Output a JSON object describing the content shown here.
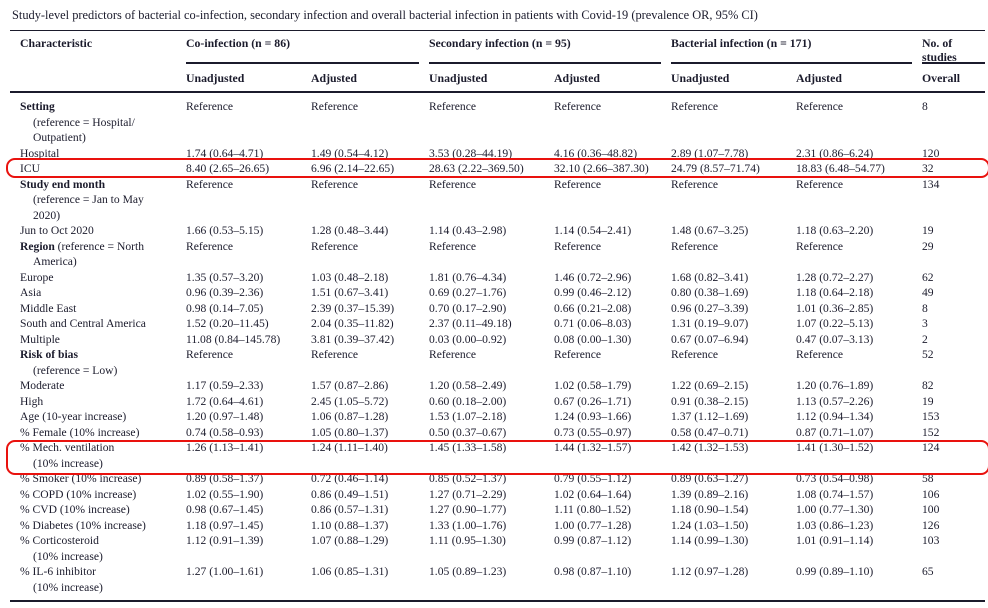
{
  "title": "Study-level predictors of bacterial co-infection, secondary infection and overall bacterial infection in patients with Covid-19 (prevalence OR, 95% CI)",
  "text_color": "#1b1b2c",
  "annotation": {
    "highlight_color": "#e9120e",
    "highlighted_rows": [
      "ICU",
      "% Mech. ventilation (10% increase)"
    ]
  },
  "header": {
    "characteristic": "Characteristic",
    "groups": [
      {
        "label": "Co-infection (n = 86)"
      },
      {
        "label": "Secondary infection (n = 95)"
      },
      {
        "label": "Bacterial infection (n = 171)"
      }
    ],
    "studies_line1": "No. of",
    "studies_line2": "studies",
    "sub": [
      "Unadjusted",
      "Adjusted",
      "Unadjusted",
      "Adjusted",
      "Unadjusted",
      "Adjusted"
    ],
    "overall": "Overall"
  },
  "table": {
    "rows": [
      {
        "label": "Setting",
        "bold": true,
        "rest": "",
        "sublines": [
          "(reference = Hospital/",
          "Outpatient)"
        ],
        "highlight": false,
        "values": [
          "Reference",
          "Reference",
          "Reference",
          "Reference",
          "Reference",
          "Reference"
        ],
        "studies": "8"
      },
      {
        "label": "Hospital",
        "bold": false,
        "rest": "",
        "sublines": [],
        "highlight": false,
        "values": [
          "1.74 (0.64–4.71)",
          "1.49 (0.54–4.12)",
          "3.53 (0.28–44.19)",
          "4.16 (0.36–48.82)",
          "2.89 (1.07–7.78)",
          "2.31 (0.86–6.24)"
        ],
        "studies": "120"
      },
      {
        "label": "ICU",
        "bold": false,
        "rest": "",
        "sublines": [],
        "highlight": true,
        "values": [
          "8.40 (2.65–26.65)",
          "6.96 (2.14–22.65)",
          "28.63 (2.22–369.50)",
          "32.10 (2.66–387.30)",
          "24.79 (8.57–71.74)",
          "18.83 (6.48–54.77)"
        ],
        "studies": "32"
      },
      {
        "label": "Study end month",
        "bold": true,
        "rest": "",
        "sublines": [
          "(reference = Jan to May",
          "2020)"
        ],
        "highlight": false,
        "values": [
          "Reference",
          "Reference",
          "Reference",
          "Reference",
          "Reference",
          "Reference"
        ],
        "studies": "134"
      },
      {
        "label": "Jun to Oct 2020",
        "bold": false,
        "rest": "",
        "sublines": [],
        "highlight": false,
        "values": [
          "1.66 (0.53–5.15)",
          "1.28 (0.48–3.44)",
          "1.14 (0.43–2.98)",
          "1.14 (0.54–2.41)",
          "1.48 (0.67–3.25)",
          "1.18 (0.63–2.20)"
        ],
        "studies": "19"
      },
      {
        "label": "Region",
        "bold": true,
        "rest": " (reference = North",
        "sublines": [
          "America)"
        ],
        "highlight": false,
        "values": [
          "Reference",
          "Reference",
          "Reference",
          "Reference",
          "Reference",
          "Reference"
        ],
        "studies": "29"
      },
      {
        "label": "Europe",
        "bold": false,
        "rest": "",
        "sublines": [],
        "highlight": false,
        "values": [
          "1.35 (0.57–3.20)",
          "1.03 (0.48–2.18)",
          "1.81 (0.76–4.34)",
          "1.46 (0.72–2.96)",
          "1.68 (0.82–3.41)",
          "1.28 (0.72–2.27)"
        ],
        "studies": "62"
      },
      {
        "label": "Asia",
        "bold": false,
        "rest": "",
        "sublines": [],
        "highlight": false,
        "values": [
          "0.96 (0.39–2.36)",
          "1.51 (0.67–3.41)",
          "0.69 (0.27–1.76)",
          "0.99 (0.46–2.12)",
          "0.80 (0.38–1.69)",
          "1.18 (0.64–2.18)"
        ],
        "studies": "49"
      },
      {
        "label": "Middle East",
        "bold": false,
        "rest": "",
        "sublines": [],
        "highlight": false,
        "values": [
          "0.98 (0.14–7.05)",
          "2.39 (0.37–15.39)",
          "0.70 (0.17–2.90)",
          "0.66 (0.21–2.08)",
          "0.96 (0.27–3.39)",
          "1.01 (0.36–2.85)"
        ],
        "studies": "8"
      },
      {
        "label": "South and Central America",
        "bold": false,
        "rest": "",
        "sublines": [],
        "highlight": false,
        "values": [
          "1.52 (0.20–11.45)",
          "2.04 (0.35–11.82)",
          "2.37 (0.11–49.18)",
          "0.71 (0.06–8.03)",
          "1.31 (0.19–9.07)",
          "1.07 (0.22–5.13)"
        ],
        "studies": "3"
      },
      {
        "label": "Multiple",
        "bold": false,
        "rest": "",
        "sublines": [],
        "highlight": false,
        "values": [
          "11.08 (0.84–145.78)",
          "3.81 (0.39–37.42)",
          "0.03 (0.00–0.92)",
          "0.08 (0.00–1.30)",
          "0.67 (0.07–6.94)",
          "0.47 (0.07–3.13)"
        ],
        "studies": "2"
      },
      {
        "label": "Risk of bias",
        "bold": true,
        "rest": "",
        "sublines": [
          "(reference = Low)"
        ],
        "highlight": false,
        "values": [
          "Reference",
          "Reference",
          "Reference",
          "Reference",
          "Reference",
          "Reference"
        ],
        "studies": "52"
      },
      {
        "label": "Moderate",
        "bold": false,
        "rest": "",
        "sublines": [],
        "highlight": false,
        "values": [
          "1.17 (0.59–2.33)",
          "1.57 (0.87–2.86)",
          "1.20 (0.58–2.49)",
          "1.02 (0.58–1.79)",
          "1.22 (0.69–2.15)",
          "1.20 (0.76–1.89)"
        ],
        "studies": "82"
      },
      {
        "label": "High",
        "bold": false,
        "rest": "",
        "sublines": [],
        "highlight": false,
        "values": [
          "1.72 (0.64–4.61)",
          "2.45 (1.05–5.72)",
          "0.60 (0.18–2.00)",
          "0.67 (0.26–1.71)",
          "0.91 (0.38–2.15)",
          "1.13 (0.57–2.26)"
        ],
        "studies": "19"
      },
      {
        "label": "Age (10-year increase)",
        "bold": false,
        "rest": "",
        "sublines": [],
        "highlight": false,
        "values": [
          "1.20 (0.97–1.48)",
          "1.06 (0.87–1.28)",
          "1.53 (1.07–2.18)",
          "1.24 (0.93–1.66)",
          "1.37 (1.12–1.69)",
          "1.12 (0.94–1.34)"
        ],
        "studies": "153"
      },
      {
        "label": "% Female (10% increase)",
        "bold": false,
        "rest": "",
        "sublines": [],
        "highlight": false,
        "values": [
          "0.74 (0.58–0.93)",
          "1.05 (0.80–1.37)",
          "0.50 (0.37–0.67)",
          "0.73 (0.55–0.97)",
          "0.58 (0.47–0.71)",
          "0.87 (0.71–1.07)"
        ],
        "studies": "152"
      },
      {
        "label": "% Mech. ventilation",
        "bold": false,
        "rest": "",
        "sublines": [
          "(10% increase)"
        ],
        "highlight": true,
        "values": [
          "1.26 (1.13–1.41)",
          "1.24 (1.11–1.40)",
          "1.45 (1.33–1.58)",
          "1.44 (1.32–1.57)",
          "1.42 (1.32–1.53)",
          "1.41 (1.30–1.52)"
        ],
        "studies": "124"
      },
      {
        "label": "% Smoker (10% increase)",
        "bold": false,
        "rest": "",
        "sublines": [],
        "highlight": false,
        "values": [
          "0.89 (0.58–1.37)",
          "0.72 (0.46–1.14)",
          "0.85 (0.52–1.37)",
          "0.79 (0.55–1.12)",
          "0.89 (0.63–1.27)",
          "0.73 (0.54–0.98)"
        ],
        "studies": "58"
      },
      {
        "label": "% COPD (10% increase)",
        "bold": false,
        "rest": "",
        "sublines": [],
        "highlight": false,
        "values": [
          "1.02 (0.55–1.90)",
          "0.86 (0.49–1.51)",
          "1.27 (0.71–2.29)",
          "1.02 (0.64–1.64)",
          "1.39 (0.89–2.16)",
          "1.08 (0.74–1.57)"
        ],
        "studies": "106"
      },
      {
        "label": "% CVD (10% increase)",
        "bold": false,
        "rest": "",
        "sublines": [],
        "highlight": false,
        "values": [
          "0.98 (0.67–1.45)",
          "0.86 (0.57–1.31)",
          "1.27 (0.90–1.77)",
          "1.11 (0.80–1.52)",
          "1.18 (0.90–1.54)",
          "1.00 (0.77–1.30)"
        ],
        "studies": "100"
      },
      {
        "label": "% Diabetes (10% increase)",
        "bold": false,
        "rest": "",
        "sublines": [],
        "highlight": false,
        "values": [
          "1.18 (0.97–1.45)",
          "1.10 (0.88–1.37)",
          "1.33 (1.00–1.76)",
          "1.00 (0.77–1.28)",
          "1.24 (1.03–1.50)",
          "1.03 (0.86–1.23)"
        ],
        "studies": "126"
      },
      {
        "label": "% Corticosteroid",
        "bold": false,
        "rest": "",
        "sublines": [
          "(10% increase)"
        ],
        "highlight": false,
        "values": [
          "1.12 (0.91–1.39)",
          "1.07 (0.88–1.29)",
          "1.11 (0.95–1.30)",
          "0.99 (0.87–1.12)",
          "1.14 (0.99–1.30)",
          "1.01 (0.91–1.14)"
        ],
        "studies": "103"
      },
      {
        "label": "% IL-6 inhibitor",
        "bold": false,
        "rest": "",
        "sublines": [
          "(10% increase)"
        ],
        "highlight": false,
        "values": [
          "1.27 (1.00–1.61)",
          "1.06 (0.85–1.31)",
          "1.05 (0.89–1.23)",
          "0.98 (0.87–1.10)",
          "1.12 (0.97–1.28)",
          "0.99 (0.89–1.10)"
        ],
        "studies": "65"
      }
    ]
  }
}
